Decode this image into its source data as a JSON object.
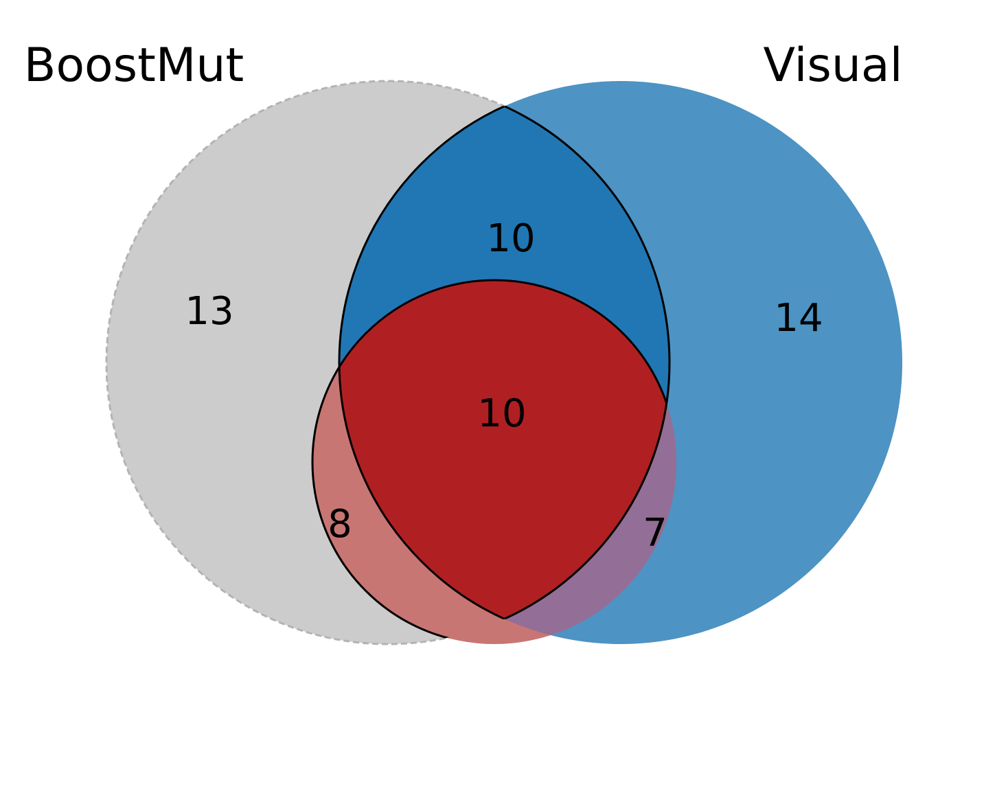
{
  "sets": [
    {
      "key": "boostmut",
      "label": "BoostMut",
      "color": "#cccccc"
    },
    {
      "key": "visual",
      "label": "Visual",
      "color": "#4d93c3"
    },
    {
      "key": "third",
      "label": "",
      "color": "#c87673"
    }
  ],
  "regions": {
    "boostmut_only": "13",
    "visual_only": "14",
    "boostmut_visual": "10",
    "boostmut_third": "8",
    "visual_third": "7",
    "all_three": "10"
  },
  "colors": {
    "boostmut_visual": "#2177b4",
    "boostmut_third": "#c87673",
    "visual_third": "#936e96",
    "all_three": "#b02022",
    "outline": "#000000",
    "boostmut_edge": "#b3b3b3"
  }
}
